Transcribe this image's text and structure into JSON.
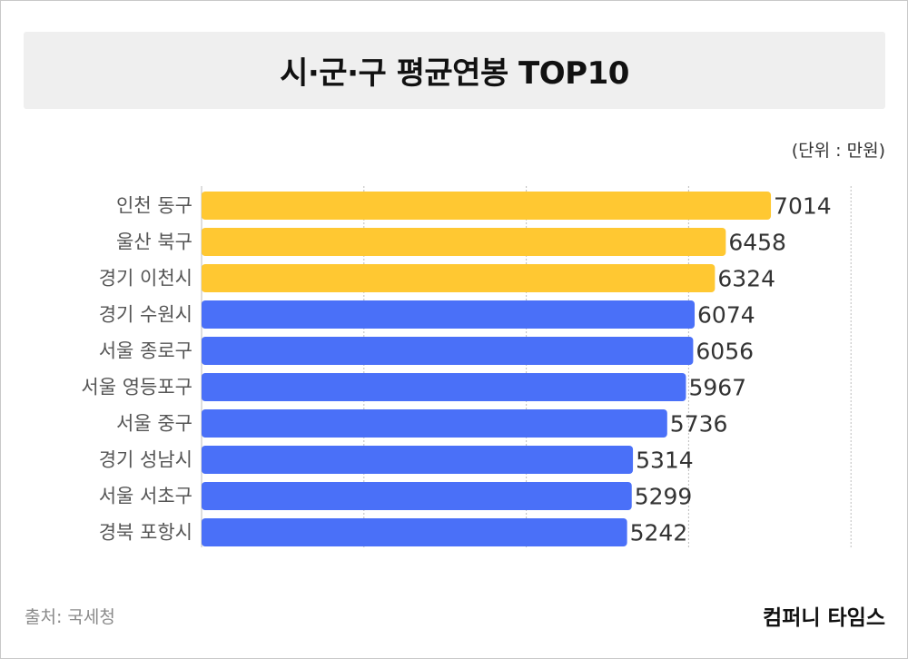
{
  "title": "시·군·구 평균연봉 TOP10",
  "unit_note": "(단위 : 만원)",
  "source": "출처: 국세청",
  "brand": "컴퍼니 타임스",
  "colors": {
    "highlight": "#FFC832",
    "default": "#4A70F8",
    "grid": "#bdbdbd"
  },
  "chart_data": {
    "type": "bar",
    "orientation": "horizontal",
    "categories": [
      "인천 동구",
      "울산 북구",
      "경기 이천시",
      "경기 수원시",
      "서울 종로구",
      "서울 영등포구",
      "서울 중구",
      "경기 성남시",
      "서울 서초구",
      "경북 포항시"
    ],
    "values": [
      7014,
      6458,
      6324,
      6074,
      6056,
      5967,
      5736,
      5314,
      5299,
      5242
    ],
    "highlighted": [
      true,
      true,
      true,
      false,
      false,
      false,
      false,
      false,
      false,
      false
    ],
    "xlim": [
      0,
      8000
    ],
    "grid": true,
    "data_labels": true
  }
}
